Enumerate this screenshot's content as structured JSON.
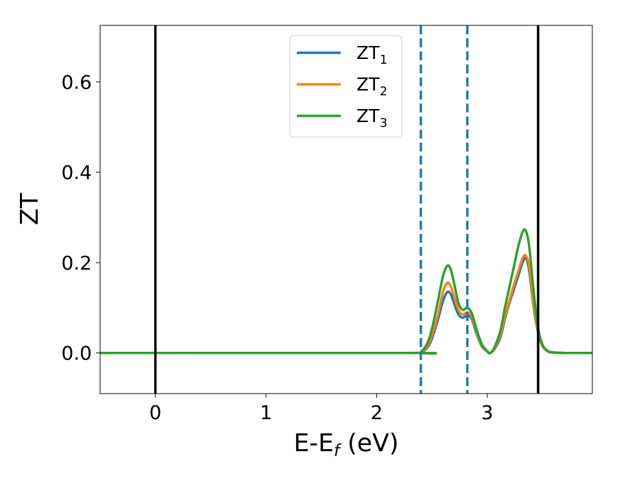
{
  "chart_data": {
    "type": "line",
    "xlabel": "E-E",
    "xlabel_sub": "f",
    "xlabel_unit": " (eV)",
    "ylabel": "ZT",
    "xlim": [
      -0.5,
      3.95
    ],
    "ylim": [
      -0.09,
      0.725
    ],
    "xticks": [
      0,
      1,
      2,
      3
    ],
    "xtick_labels": [
      "0",
      "1",
      "2",
      "3"
    ],
    "yticks": [
      0.0,
      0.2,
      0.4,
      0.6
    ],
    "ytick_labels": [
      "0.0",
      "0.2",
      "0.4",
      "0.6"
    ],
    "grid": false,
    "legend_position": "upper-center",
    "vlines_solid": [
      0.0,
      3.46
    ],
    "vlines_dashed": [
      2.4,
      2.82
    ],
    "vline_colors": {
      "solid": "#000000",
      "dashed": "#1f77b4"
    },
    "series": [
      {
        "name": "ZT",
        "sub": "1",
        "color": "#1f77b4",
        "x": [
          -0.5,
          2.3,
          2.4,
          2.48,
          2.55,
          2.6,
          2.64,
          2.67,
          2.7,
          2.74,
          2.78,
          2.82,
          2.86,
          2.9,
          2.95,
          3.0,
          3.03,
          3.07,
          3.12,
          3.16,
          3.2,
          3.24,
          3.28,
          3.32,
          3.35,
          3.38,
          3.42,
          3.46,
          3.5,
          3.55,
          3.6,
          3.7,
          3.95
        ],
        "y": [
          0,
          0,
          0.001,
          0.02,
          0.07,
          0.115,
          0.135,
          0.13,
          0.11,
          0.085,
          0.078,
          0.083,
          0.075,
          0.045,
          0.015,
          0.003,
          0.0,
          0.01,
          0.035,
          0.075,
          0.11,
          0.14,
          0.17,
          0.2,
          0.21,
          0.18,
          0.1,
          0.045,
          0.015,
          0.003,
          0.001,
          0,
          0
        ]
      },
      {
        "name": "ZT",
        "sub": "2",
        "color": "#ff7f0e",
        "x": [
          -0.5,
          2.3,
          2.4,
          2.48,
          2.55,
          2.6,
          2.64,
          2.67,
          2.7,
          2.74,
          2.78,
          2.82,
          2.86,
          2.9,
          2.95,
          3.0,
          3.03,
          3.07,
          3.12,
          3.16,
          3.2,
          3.24,
          3.28,
          3.32,
          3.35,
          3.38,
          3.42,
          3.46,
          3.5,
          3.55,
          3.6,
          3.7,
          3.95
        ],
        "y": [
          0,
          0,
          0.001,
          0.025,
          0.08,
          0.135,
          0.155,
          0.148,
          0.125,
          0.095,
          0.085,
          0.09,
          0.08,
          0.05,
          0.017,
          0.003,
          0.0,
          0.012,
          0.04,
          0.08,
          0.115,
          0.15,
          0.18,
          0.21,
          0.215,
          0.19,
          0.105,
          0.048,
          0.016,
          0.003,
          0.001,
          0,
          0
        ]
      },
      {
        "name": "ZT",
        "sub": "3",
        "color": "#2ca02c",
        "x": [
          -0.5,
          2.3,
          2.4,
          2.48,
          2.55,
          2.6,
          2.64,
          2.67,
          2.7,
          2.74,
          2.78,
          2.82,
          2.86,
          2.9,
          2.95,
          3.0,
          3.03,
          3.07,
          3.12,
          3.16,
          3.2,
          3.24,
          3.28,
          3.32,
          3.35,
          3.38,
          3.42,
          3.46,
          3.5,
          3.55,
          3.6,
          3.7,
          3.95
        ],
        "y": [
          0,
          0,
          0.002,
          0.035,
          0.11,
          0.17,
          0.193,
          0.185,
          0.155,
          0.11,
          0.095,
          0.1,
          0.088,
          0.055,
          0.02,
          0.004,
          0.0,
          0.015,
          0.05,
          0.1,
          0.145,
          0.19,
          0.235,
          0.268,
          0.27,
          0.235,
          0.135,
          0.055,
          0.018,
          0.004,
          0.001,
          0,
          0
        ]
      }
    ]
  }
}
